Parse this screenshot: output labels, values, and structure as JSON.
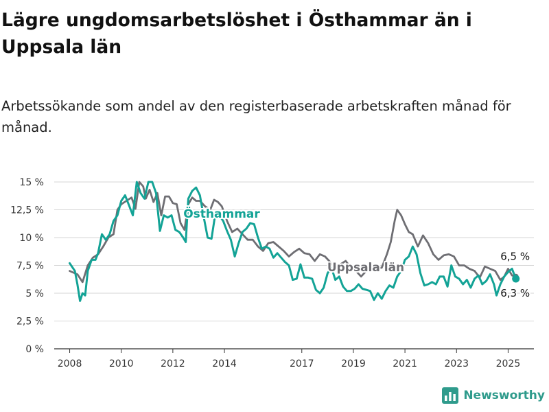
{
  "header": {
    "title": "Lägre ungdomsarbetslöshet i Östhammar än i Uppsala län",
    "subtitle": "Arbetssökande som andel av den registerbaserade arbetskraften månad för månad."
  },
  "brand": {
    "name": "Newsworthy",
    "icon": "bar-chart-logo-icon",
    "color": "#2f9b8c"
  },
  "chart_data": {
    "type": "line",
    "ylim": [
      0,
      15
    ],
    "yticks": [
      0,
      2.5,
      5,
      7.5,
      10,
      12.5,
      15
    ],
    "ytick_labels": [
      "0 %",
      "2,5 %",
      "5 %",
      "7,5 %",
      "10 %",
      "12,5 %",
      "15 %"
    ],
    "xlim": [
      2007.4,
      2026.0
    ],
    "xticks": [
      2008,
      2010,
      2012,
      2014,
      2017,
      2019,
      2021,
      2023,
      2025
    ],
    "xtick_labels": [
      "2008",
      "2010",
      "2012",
      "2014",
      "2017",
      "2019",
      "2021",
      "2023",
      "2025"
    ],
    "grid": "horizontal",
    "series": [
      {
        "name": "Uppsala län",
        "color": "#6e6e73",
        "end_label": "6,5 %",
        "points": [
          [
            2008.0,
            7.0
          ],
          [
            2008.3,
            6.7
          ],
          [
            2008.5,
            6.0
          ],
          [
            2008.7,
            7.5
          ],
          [
            2008.9,
            8.2
          ],
          [
            2009.1,
            8.5
          ],
          [
            2009.3,
            9.2
          ],
          [
            2009.5,
            10.0
          ],
          [
            2009.7,
            10.3
          ],
          [
            2009.85,
            12.5
          ],
          [
            2010.0,
            13.0
          ],
          [
            2010.2,
            13.3
          ],
          [
            2010.4,
            13.6
          ],
          [
            2010.55,
            12.6
          ],
          [
            2010.7,
            15.0
          ],
          [
            2010.85,
            14.6
          ],
          [
            2010.95,
            13.5
          ],
          [
            2011.1,
            14.3
          ],
          [
            2011.25,
            13.2
          ],
          [
            2011.4,
            14.0
          ],
          [
            2011.55,
            12.0
          ],
          [
            2011.7,
            13.7
          ],
          [
            2011.85,
            13.7
          ],
          [
            2012.0,
            13.1
          ],
          [
            2012.15,
            13.0
          ],
          [
            2012.3,
            11.3
          ],
          [
            2012.45,
            10.7
          ],
          [
            2012.6,
            13.0
          ],
          [
            2012.75,
            13.6
          ],
          [
            2012.9,
            13.3
          ],
          [
            2013.05,
            13.3
          ],
          [
            2013.25,
            12.8
          ],
          [
            2013.45,
            12.5
          ],
          [
            2013.6,
            13.4
          ],
          [
            2013.75,
            13.2
          ],
          [
            2013.9,
            12.8
          ],
          [
            2014.1,
            11.5
          ],
          [
            2014.3,
            10.5
          ],
          [
            2014.5,
            10.8
          ],
          [
            2014.7,
            10.3
          ],
          [
            2014.9,
            9.8
          ],
          [
            2015.1,
            9.8
          ],
          [
            2015.3,
            9.2
          ],
          [
            2015.5,
            8.8
          ],
          [
            2015.7,
            9.5
          ],
          [
            2015.9,
            9.6
          ],
          [
            2016.1,
            9.2
          ],
          [
            2016.3,
            8.8
          ],
          [
            2016.5,
            8.3
          ],
          [
            2016.7,
            8.7
          ],
          [
            2016.9,
            9.0
          ],
          [
            2017.1,
            8.6
          ],
          [
            2017.3,
            8.5
          ],
          [
            2017.5,
            7.9
          ],
          [
            2017.7,
            8.5
          ],
          [
            2017.9,
            8.3
          ],
          [
            2018.1,
            7.8
          ],
          [
            2018.3,
            7.3
          ],
          [
            2018.5,
            7.6
          ],
          [
            2018.7,
            7.9
          ],
          [
            2018.9,
            7.3
          ],
          [
            2019.1,
            7.0
          ],
          [
            2019.3,
            6.5
          ],
          [
            2019.5,
            7.0
          ],
          [
            2019.7,
            7.5
          ],
          [
            2019.9,
            7.2
          ],
          [
            2020.1,
            7.3
          ],
          [
            2020.3,
            8.5
          ],
          [
            2020.45,
            9.6
          ],
          [
            2020.6,
            11.5
          ],
          [
            2020.7,
            12.5
          ],
          [
            2020.85,
            12.0
          ],
          [
            2021.0,
            11.2
          ],
          [
            2021.15,
            10.5
          ],
          [
            2021.3,
            10.3
          ],
          [
            2021.5,
            9.2
          ],
          [
            2021.7,
            10.2
          ],
          [
            2021.9,
            9.5
          ],
          [
            2022.1,
            8.5
          ],
          [
            2022.3,
            8.0
          ],
          [
            2022.5,
            8.4
          ],
          [
            2022.7,
            8.5
          ],
          [
            2022.9,
            8.3
          ],
          [
            2023.1,
            7.5
          ],
          [
            2023.3,
            7.5
          ],
          [
            2023.5,
            7.2
          ],
          [
            2023.7,
            7.0
          ],
          [
            2023.9,
            6.4
          ],
          [
            2024.1,
            7.4
          ],
          [
            2024.3,
            7.2
          ],
          [
            2024.5,
            7.0
          ],
          [
            2024.7,
            6.2
          ],
          [
            2024.85,
            6.5
          ],
          [
            2025.0,
            7.2
          ],
          [
            2025.15,
            6.6
          ],
          [
            2025.3,
            6.5
          ]
        ]
      },
      {
        "name": "Östhammar",
        "color": "#13a396",
        "end_label": "6,3 %",
        "points": [
          [
            2008.0,
            7.7
          ],
          [
            2008.2,
            7.0
          ],
          [
            2008.3,
            5.8
          ],
          [
            2008.4,
            4.3
          ],
          [
            2008.5,
            5.0
          ],
          [
            2008.6,
            4.8
          ],
          [
            2008.7,
            7.0
          ],
          [
            2008.85,
            8.0
          ],
          [
            2009.0,
            8.0
          ],
          [
            2009.1,
            8.6
          ],
          [
            2009.25,
            10.3
          ],
          [
            2009.4,
            9.8
          ],
          [
            2009.55,
            10.3
          ],
          [
            2009.7,
            11.5
          ],
          [
            2009.85,
            12.0
          ],
          [
            2010.0,
            13.3
          ],
          [
            2010.15,
            13.8
          ],
          [
            2010.3,
            12.9
          ],
          [
            2010.45,
            12.0
          ],
          [
            2010.6,
            15.0
          ],
          [
            2010.75,
            14.0
          ],
          [
            2010.9,
            13.5
          ],
          [
            2011.05,
            15.0
          ],
          [
            2011.2,
            15.0
          ],
          [
            2011.35,
            14.0
          ],
          [
            2011.5,
            10.6
          ],
          [
            2011.65,
            12.0
          ],
          [
            2011.8,
            11.8
          ],
          [
            2011.95,
            12.0
          ],
          [
            2012.1,
            10.7
          ],
          [
            2012.25,
            10.5
          ],
          [
            2012.4,
            10.0
          ],
          [
            2012.5,
            9.6
          ],
          [
            2012.6,
            13.5
          ],
          [
            2012.75,
            14.2
          ],
          [
            2012.9,
            14.5
          ],
          [
            2013.05,
            13.8
          ],
          [
            2013.2,
            11.8
          ],
          [
            2013.35,
            10.0
          ],
          [
            2013.5,
            9.9
          ],
          [
            2013.65,
            12.2
          ],
          [
            2013.8,
            12.0
          ],
          [
            2013.95,
            11.5
          ],
          [
            2014.1,
            10.6
          ],
          [
            2014.25,
            9.8
          ],
          [
            2014.4,
            8.3
          ],
          [
            2014.55,
            9.5
          ],
          [
            2014.7,
            10.5
          ],
          [
            2014.85,
            10.8
          ],
          [
            2015.0,
            11.3
          ],
          [
            2015.15,
            11.2
          ],
          [
            2015.3,
            10.0
          ],
          [
            2015.45,
            9.0
          ],
          [
            2015.6,
            9.2
          ],
          [
            2015.75,
            9.0
          ],
          [
            2015.9,
            8.2
          ],
          [
            2016.05,
            8.6
          ],
          [
            2016.2,
            8.2
          ],
          [
            2016.35,
            7.8
          ],
          [
            2016.5,
            7.5
          ],
          [
            2016.65,
            6.2
          ],
          [
            2016.8,
            6.3
          ],
          [
            2016.95,
            7.6
          ],
          [
            2017.1,
            6.4
          ],
          [
            2017.25,
            6.4
          ],
          [
            2017.4,
            6.3
          ],
          [
            2017.55,
            5.3
          ],
          [
            2017.7,
            5.0
          ],
          [
            2017.85,
            5.5
          ],
          [
            2018.0,
            6.8
          ],
          [
            2018.15,
            7.3
          ],
          [
            2018.3,
            6.2
          ],
          [
            2018.45,
            6.5
          ],
          [
            2018.6,
            5.6
          ],
          [
            2018.75,
            5.2
          ],
          [
            2018.9,
            5.2
          ],
          [
            2019.05,
            5.4
          ],
          [
            2019.2,
            5.8
          ],
          [
            2019.35,
            5.4
          ],
          [
            2019.5,
            5.3
          ],
          [
            2019.65,
            5.2
          ],
          [
            2019.8,
            4.4
          ],
          [
            2019.95,
            5.0
          ],
          [
            2020.1,
            4.5
          ],
          [
            2020.25,
            5.2
          ],
          [
            2020.4,
            5.7
          ],
          [
            2020.55,
            5.5
          ],
          [
            2020.7,
            6.5
          ],
          [
            2020.85,
            7.0
          ],
          [
            2021.0,
            8.0
          ],
          [
            2021.15,
            8.3
          ],
          [
            2021.3,
            9.2
          ],
          [
            2021.45,
            8.5
          ],
          [
            2021.6,
            6.8
          ],
          [
            2021.75,
            5.7
          ],
          [
            2021.9,
            5.8
          ],
          [
            2022.05,
            6.0
          ],
          [
            2022.2,
            5.8
          ],
          [
            2022.35,
            6.5
          ],
          [
            2022.5,
            6.5
          ],
          [
            2022.65,
            5.6
          ],
          [
            2022.8,
            7.5
          ],
          [
            2022.95,
            6.5
          ],
          [
            2023.1,
            6.3
          ],
          [
            2023.25,
            5.8
          ],
          [
            2023.4,
            6.2
          ],
          [
            2023.55,
            5.5
          ],
          [
            2023.7,
            6.3
          ],
          [
            2023.85,
            6.6
          ],
          [
            2024.0,
            5.8
          ],
          [
            2024.15,
            6.1
          ],
          [
            2024.3,
            6.7
          ],
          [
            2024.45,
            5.8
          ],
          [
            2024.55,
            4.8
          ],
          [
            2024.7,
            5.8
          ],
          [
            2024.85,
            6.5
          ],
          [
            2025.0,
            6.9
          ],
          [
            2025.15,
            7.2
          ],
          [
            2025.3,
            6.3
          ]
        ]
      }
    ]
  }
}
